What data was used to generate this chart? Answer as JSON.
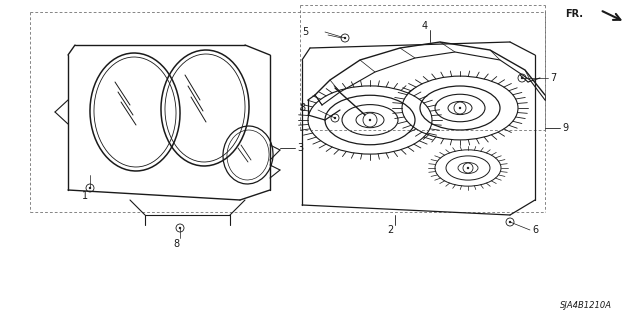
{
  "bg_color": "#ffffff",
  "line_color": "#1a1a1a",
  "dash_color": "#555555",
  "fig_width": 6.4,
  "fig_height": 3.19,
  "dpi": 100,
  "part_number": "SJA4B1210A",
  "fr_text": "FR.",
  "label_fontsize": 7.0,
  "pn_fontsize": 6.0
}
